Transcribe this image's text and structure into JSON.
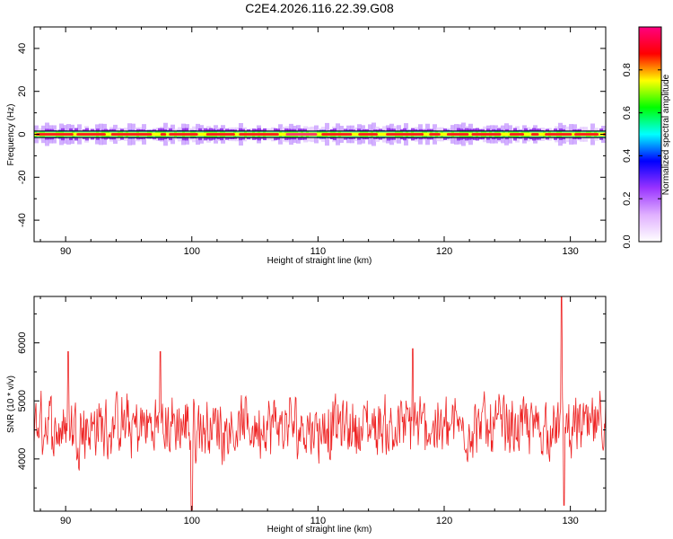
{
  "title": "C2E4.2026.116.22.39.G08",
  "chart_data": [
    {
      "type": "heatmap",
      "title": "C2E4.2026.116.22.39.G08",
      "xlabel": "Height of straight line (km)",
      "ylabel": "Frequency (Hz)",
      "xlim": [
        87.5,
        132.8
      ],
      "ylim": [
        -50,
        50
      ],
      "xticks": [
        90,
        100,
        110,
        120,
        130
      ],
      "yticks": [
        -40,
        -20,
        0,
        20,
        40
      ],
      "xtick_labels": [
        "90",
        "100",
        "110",
        "120",
        "130"
      ],
      "ytick_labels": [
        "-40",
        "-20",
        "0",
        "20",
        "40"
      ],
      "band_center_hz": 0,
      "band_halfwidth_hz": 1,
      "colorbar": {
        "label": "Normalized spectral amplitude",
        "range": [
          0,
          1
        ],
        "ticks": [
          0.0,
          0.2,
          0.4,
          0.6,
          0.8
        ],
        "tick_labels": [
          "0.0",
          "0.2",
          "0.4",
          "0.6",
          "0.8"
        ],
        "stops": [
          "#ffffff",
          "#e0b0ff",
          "#9933ff",
          "#0000ff",
          "#00ffff",
          "#00ff00",
          "#ffff00",
          "#ff0000",
          "#ff0080"
        ]
      },
      "grid": false
    },
    {
      "type": "line",
      "xlabel": "Height of straight line (km)",
      "ylabel": "SNR (10 * v/v)",
      "xlim": [
        87.5,
        132.8
      ],
      "ylim": [
        3100,
        6800
      ],
      "xticks": [
        90,
        100,
        110,
        120,
        130
      ],
      "yticks": [
        4000,
        5000,
        6000
      ],
      "xtick_labels": [
        "90",
        "100",
        "110",
        "120",
        "130"
      ],
      "ytick_labels": [
        "4000",
        "5000",
        "6000"
      ],
      "series_color": "#ee2222",
      "base_level": 4550,
      "spikes": [
        {
          "x": 90.2,
          "y": 5850
        },
        {
          "x": 97.5,
          "y": 5850
        },
        {
          "x": 100.0,
          "y": 3100
        },
        {
          "x": 117.5,
          "y": 5900
        },
        {
          "x": 129.3,
          "y": 6800
        },
        {
          "x": 129.5,
          "y": 3200
        }
      ],
      "grid": false
    }
  ]
}
